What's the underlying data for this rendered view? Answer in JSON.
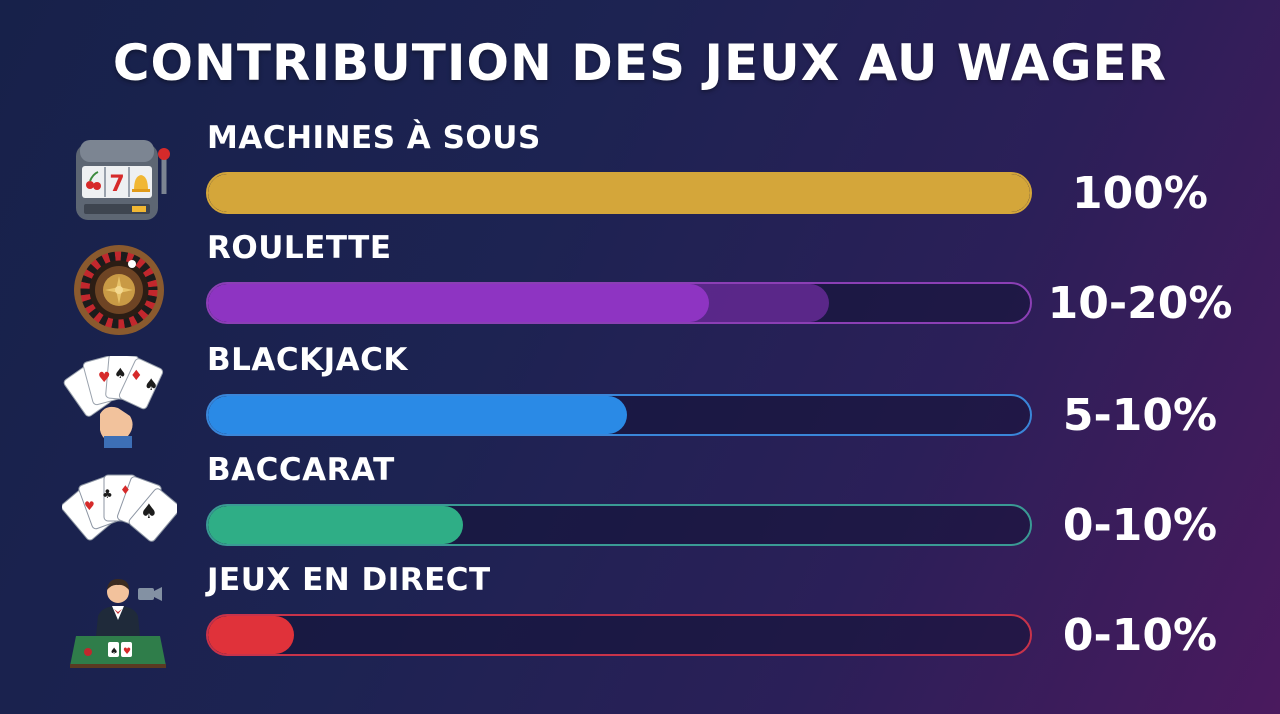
{
  "chart_data": {
    "type": "bar",
    "orientation": "horizontal",
    "title": "CONTRIBUTION DES JEUX AU WAGER",
    "unit": "%",
    "xlim": [
      0,
      100
    ],
    "categories": [
      "MACHINES À SOUS",
      "ROULETTE",
      "BLACKJACK",
      "BACCARAT",
      "JEUX EN DIRECT"
    ],
    "value_labels": [
      "100%",
      "10-20%",
      "5-10%",
      "0-10%",
      "0-10%"
    ],
    "bars": [
      {
        "label": "MACHINES À SOUS",
        "value_label": "100%",
        "fill_fraction": 1.0,
        "range_fraction": 1.0,
        "color": "#d4a63a",
        "border": "#d4a63a",
        "icon": "slot-machine-icon"
      },
      {
        "label": "ROULETTE",
        "value_label": "10-20%",
        "fill_fraction": 0.61,
        "range_fraction": 0.755,
        "color": "#8e34c2",
        "border": "#8b3fb5",
        "icon": "roulette-wheel-icon"
      },
      {
        "label": "BLACKJACK",
        "value_label": "5-10%",
        "fill_fraction": 0.51,
        "range_fraction": 0.51,
        "color": "#2a8ae6",
        "border": "#3a86d9",
        "icon": "hand-of-cards-icon"
      },
      {
        "label": "BACCARAT",
        "value_label": "0-10%",
        "fill_fraction": 0.31,
        "range_fraction": 0.31,
        "color": "#2fae86",
        "border": "#3a9a94",
        "icon": "fanned-cards-icon"
      },
      {
        "label": "JEUX EN DIRECT",
        "value_label": "0-10%",
        "fill_fraction": 0.105,
        "range_fraction": 0.105,
        "color": "#e0323a",
        "border": "#c8334a",
        "icon": "live-dealer-icon"
      }
    ]
  }
}
